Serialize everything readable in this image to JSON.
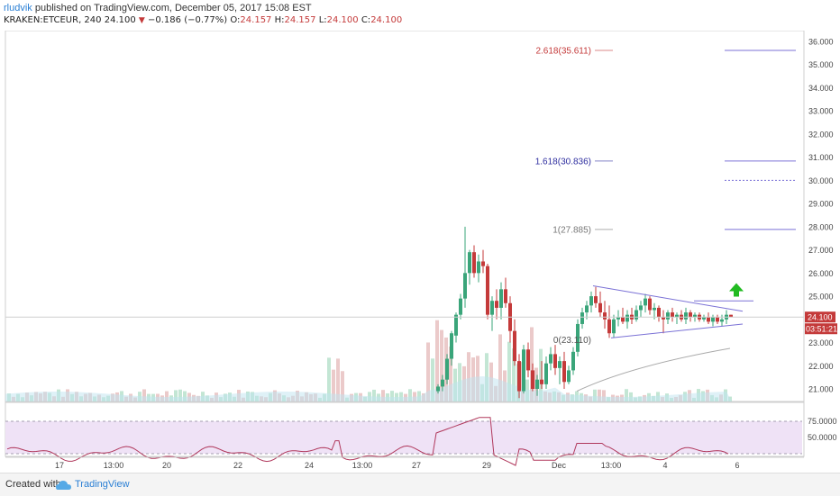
{
  "header": {
    "author": "rludvik",
    "published": "published on TradingView.com, December 05, 2017 15:08 EST",
    "symbol": "KRAKEN:ETCEUR, 240",
    "last": "24.100",
    "change": "−0.186 (−0.77%)",
    "o_label": "O:",
    "o": "24.157",
    "h_label": "H:",
    "h": "24.157",
    "l_label": "L:",
    "l": "24.100",
    "c_label": "C:",
    "c": "24.100"
  },
  "price_axis": [
    "36.000",
    "35.000",
    "34.000",
    "33.000",
    "32.000",
    "31.000",
    "30.000",
    "29.000",
    "28.000",
    "27.000",
    "26.000",
    "25.000",
    "24.100",
    "23.000",
    "22.000",
    "21.000"
  ],
  "last_price_label": "24.100",
  "countdown_label": "03:51:21",
  "rsi_axis": [
    "75.0000",
    "50.0000"
  ],
  "time_axis": [
    "17",
    "13:00",
    "20",
    "22",
    "24",
    "13:00",
    "27",
    "29",
    "Dec",
    "13:00",
    "4",
    "6"
  ],
  "fib_levels": [
    {
      "label": "2.618(35.611)",
      "color": "#c43a3a"
    },
    {
      "label": "1.618(30.836)",
      "color": "#2d2d9f"
    },
    {
      "label": "1(27.885)",
      "color": "#777777"
    },
    {
      "label": "0(23.110)",
      "color": "#555555"
    }
  ],
  "colors": {
    "up": "#3aa57a",
    "down": "#c43a3a",
    "triangle": "#7b72d6",
    "arrow": "#22bb22",
    "rsi_fill": "#ecdcf4",
    "rsi_line": "#b0385c"
  },
  "footer": {
    "created": "Created with",
    "brand": "TradingView"
  }
}
